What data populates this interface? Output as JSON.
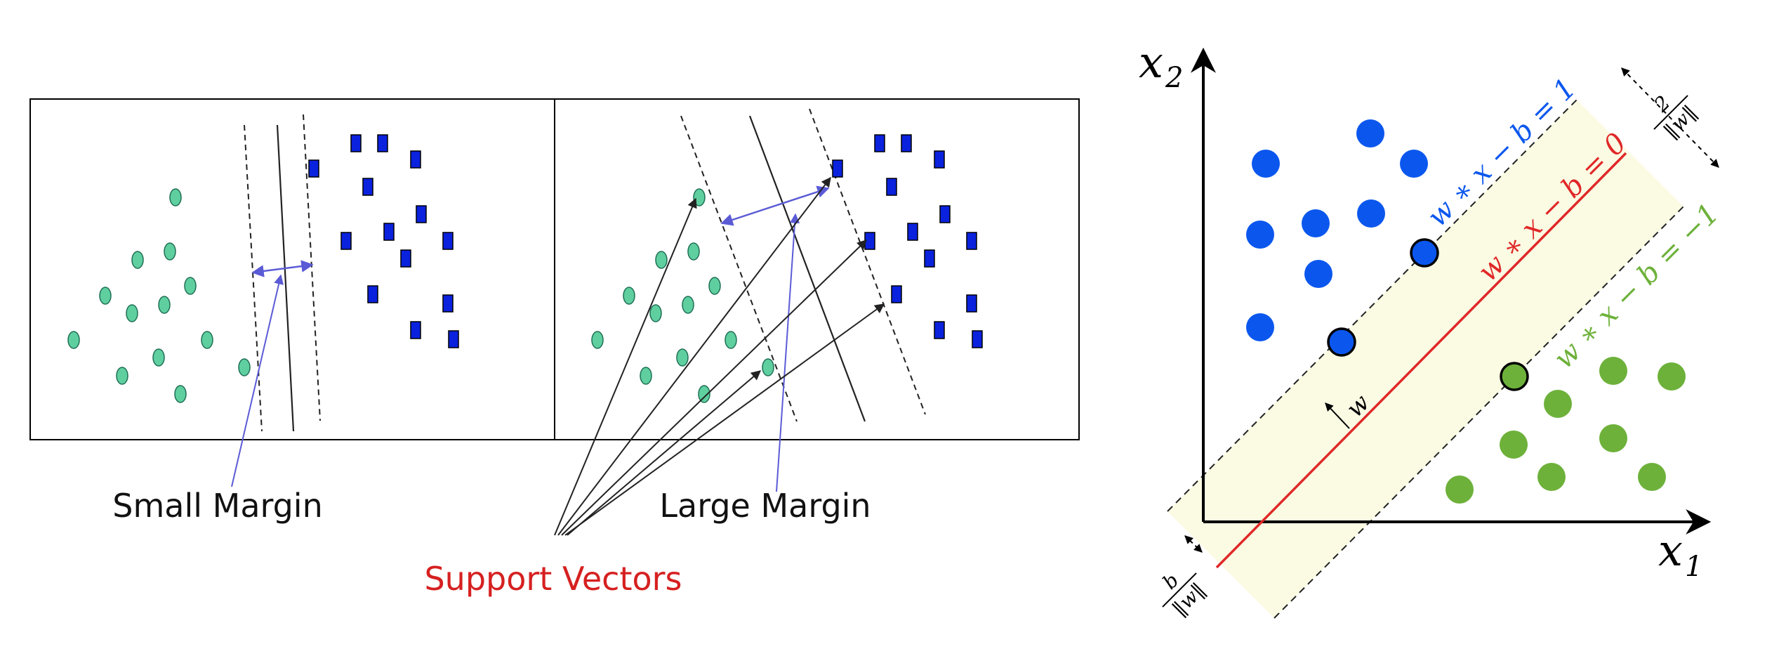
{
  "left_figure": {
    "small_margin_label": "Small Margin",
    "large_margin_label": "Large Margin",
    "support_vectors_label": "Support Vectors",
    "colors": {
      "circle_fill": "#5fcf9f",
      "square_fill": "#0a22dd",
      "arrow_blue": "#5b5bd6",
      "support_red": "#d62020"
    }
  },
  "right_figure": {
    "x1_label": "x",
    "x1_sub": "1",
    "x2_label": "x",
    "x2_sub": "2",
    "positive_line_label": "w ∗ x − b = 1",
    "decision_line_label": "w ∗ x − b = 0",
    "negative_line_label": "w ∗ x − b = −1",
    "w_label": "w",
    "margin_num": "2",
    "margin_den": "‖w‖",
    "offset_num": "b",
    "offset_den": "‖w‖",
    "colors": {
      "blue": "#0b57ee",
      "red": "#e02828",
      "green": "#6db13a",
      "band": "#fbfbe3"
    }
  }
}
